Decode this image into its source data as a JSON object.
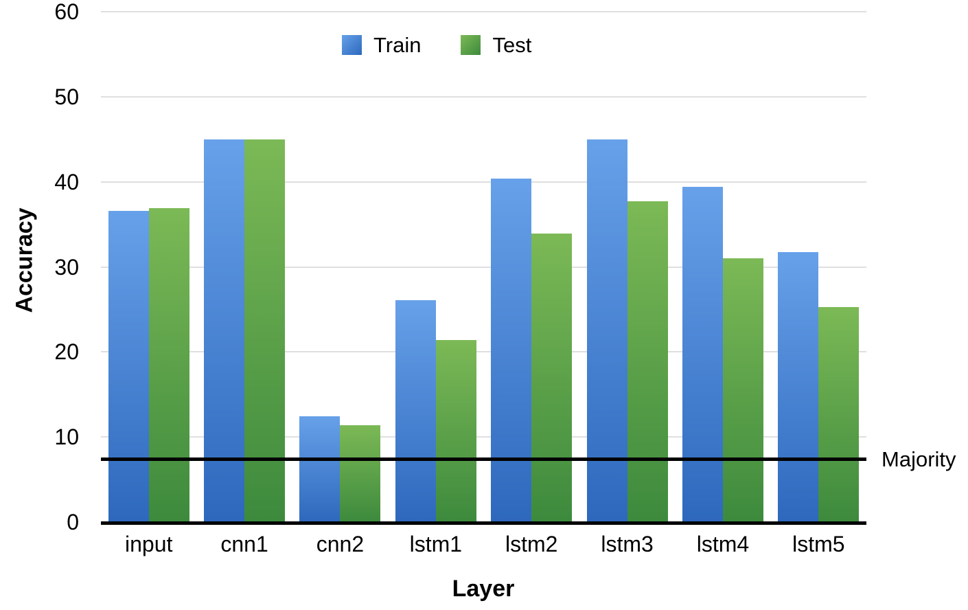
{
  "chart_data": {
    "type": "bar",
    "title": "",
    "xlabel": "Layer",
    "ylabel": "Accuracy",
    "ylim": [
      0,
      60
    ],
    "yticks": [
      0,
      10,
      20,
      30,
      40,
      50,
      60
    ],
    "grid": true,
    "legend_position": "top-center",
    "categories": [
      "input",
      "cnn1",
      "cnn2",
      "lstm1",
      "lstm2",
      "lstm3",
      "lstm4",
      "lstm5"
    ],
    "series": [
      {
        "name": "Train",
        "key": "train",
        "values": [
          36.6,
          45.0,
          12.4,
          26.1,
          40.4,
          45.0,
          39.4,
          31.7
        ]
      },
      {
        "name": "Test",
        "key": "test",
        "values": [
          36.9,
          45.0,
          11.4,
          21.4,
          33.9,
          37.7,
          31.0,
          25.3
        ]
      }
    ],
    "annotation_line": {
      "label": "Majority",
      "value": 7.4,
      "color": "#000000"
    },
    "colors": {
      "train_top": "#67a1e9",
      "train_bottom": "#2d68bd",
      "test_top": "#7cb956",
      "test_bottom": "#3d8a3d",
      "gridline": "#dfdfdf",
      "axis": "#000000"
    }
  }
}
